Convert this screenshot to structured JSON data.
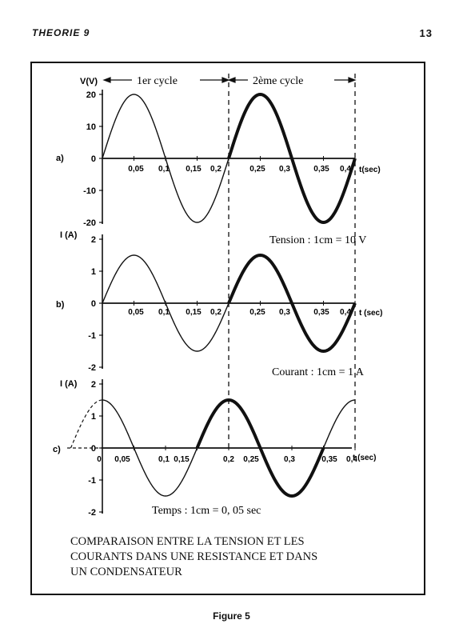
{
  "header": {
    "section": "THEORIE 9",
    "page_number": "13"
  },
  "figure_caption": "Figure 5",
  "description_lines": [
    "COMPARAISON ENTRE LA TENSION ET LES",
    "COURANTS DANS UNE RESISTANCE ET DANS",
    "UN CONDENSATEUR"
  ],
  "cycle_labels": {
    "first": "1er cycle",
    "second": "2ème cycle"
  },
  "chart_data": [
    {
      "type": "line",
      "panel_label": "a)",
      "ylabel": "V(V)",
      "xlabel": "t(sec)",
      "yticks": [
        "20",
        "10",
        "0",
        "-10",
        "-20"
      ],
      "xticks": [
        "0,05",
        "0,1",
        "0,15",
        "0,2",
        "0,25",
        "0,3",
        "0,35",
        "0,4"
      ],
      "xlim": [
        0,
        0.4
      ],
      "ylim": [
        -20,
        20
      ],
      "amplitude": 20,
      "phase": "sine",
      "scale_note": "Tension : 1cm = 10 V",
      "emphasized_interval": [
        0.2,
        0.4
      ]
    },
    {
      "type": "line",
      "panel_label": "b)",
      "ylabel": "I (A)",
      "xlabel": "t (sec)",
      "yticks": [
        "2",
        "1",
        "0",
        "-1",
        "-2"
      ],
      "xticks": [
        "0,05",
        "0,1",
        "0,15",
        "0,2",
        "0,25",
        "0,3",
        "0,35",
        "0,4"
      ],
      "xlim": [
        0,
        0.4
      ],
      "ylim": [
        -2,
        2
      ],
      "amplitude": 1.5,
      "phase": "sine",
      "scale_note": "Courant : 1cm = 1 A",
      "emphasized_interval": [
        0.2,
        0.4
      ]
    },
    {
      "type": "line",
      "panel_label": "c)",
      "ylabel": "I (A)",
      "xlabel": "t (sec)",
      "yticks": [
        "2",
        "1",
        "0",
        "-1",
        "-2"
      ],
      "xticks": [
        "0",
        "0,05",
        "0,1",
        "0,15",
        "0,2",
        "0,25",
        "0,3",
        "0,35",
        "0,4"
      ],
      "xlim": [
        0,
        0.4
      ],
      "ylim": [
        -2,
        2
      ],
      "amplitude": 1.5,
      "phase": "cosine",
      "scale_note": "Temps : 1cm = 0, 05 sec",
      "emphasized_interval": [
        0.15,
        0.35
      ]
    }
  ]
}
